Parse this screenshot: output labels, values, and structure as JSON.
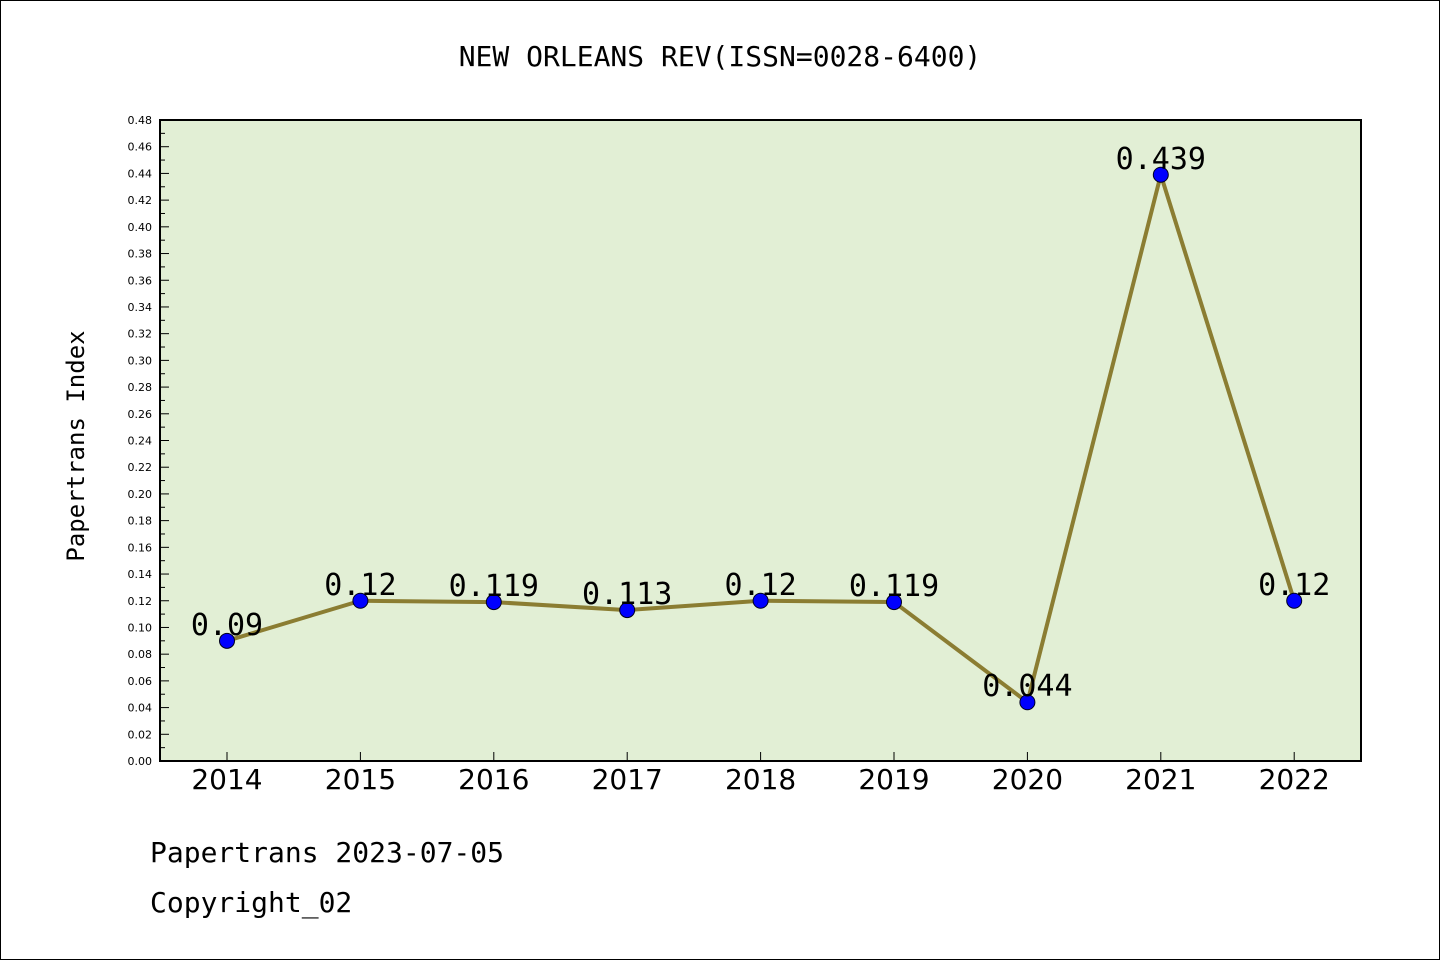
{
  "chart_data": {
    "type": "line",
    "title": "NEW ORLEANS REV(ISSN=0028-6400)",
    "ylabel": "Papertrans Index",
    "xlabel": "",
    "categories": [
      "2014",
      "2015",
      "2016",
      "2017",
      "2018",
      "2019",
      "2020",
      "2021",
      "2022"
    ],
    "series": [
      {
        "values": [
          0.09,
          0.12,
          0.119,
          0.113,
          0.12,
          0.119,
          0.044,
          0.439,
          0.12
        ]
      }
    ],
    "data_labels": [
      "0.09",
      "0.12",
      "0.119",
      "0.113",
      "0.12",
      "0.119",
      "0.044",
      "0.439",
      "0.12"
    ],
    "ylim": [
      0,
      0.48
    ],
    "ytick_step": 0.02,
    "grid": false,
    "colors": {
      "plot_bg": "#e2efd5",
      "line": "#8b7d32",
      "marker": "#0000ff"
    }
  },
  "footer": {
    "line1": "Papertrans 2023-07-05",
    "line2": "Copyright_02"
  }
}
